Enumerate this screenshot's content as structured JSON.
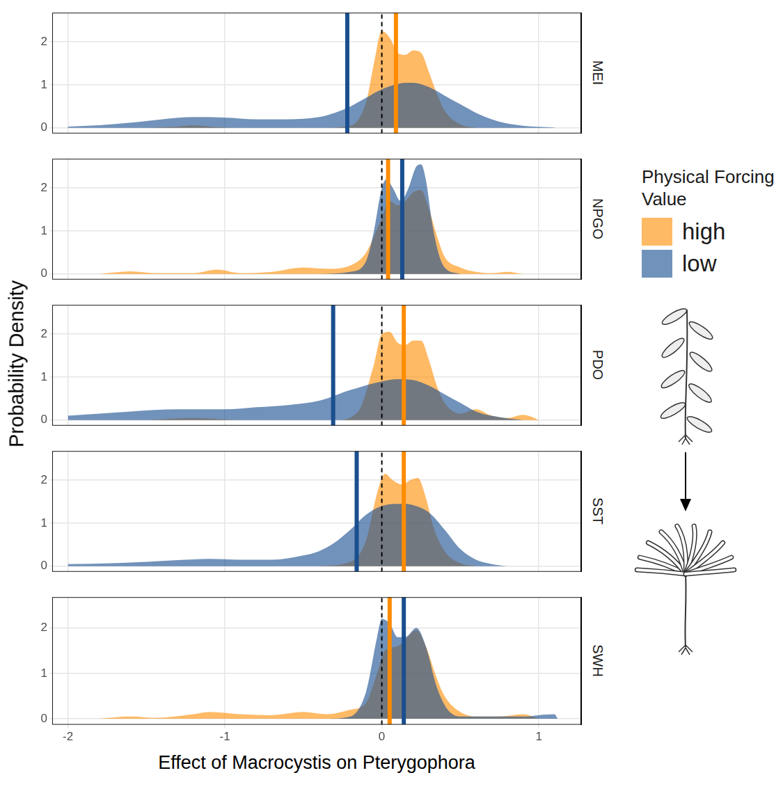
{
  "figure": {
    "x_label": "Effect of Macrocystis on Pterygophora",
    "y_label": "Probability Density",
    "legend_title": "Physical Forcing Value",
    "legend": "right"
  },
  "chart_data": [
    {
      "type": "area",
      "title": "MEI",
      "tick_labels": "y",
      "grid": true,
      "xlim": [
        -2.1,
        1.27
      ],
      "xticks": [
        -2,
        -1,
        0,
        1
      ],
      "ylim": [
        -0.13,
        2.68
      ],
      "yticks": [
        0,
        1,
        2
      ],
      "reference_line": 0,
      "series": [
        {
          "name": "high",
          "color": "#ff8c00",
          "median": 0.09,
          "x": [
            -1.5,
            -1.3,
            -1.2,
            -1.1,
            -0.9,
            -0.4,
            -0.2,
            -0.1,
            -0.05,
            0,
            0.05,
            0.1,
            0.15,
            0.2,
            0.25,
            0.3,
            0.35,
            0.4,
            0.5,
            0.6
          ],
          "values": [
            0,
            0.03,
            0.06,
            0.03,
            0,
            0,
            0.05,
            0.6,
            1.5,
            2.25,
            2.1,
            1.75,
            1.7,
            1.8,
            1.75,
            1.3,
            0.8,
            0.4,
            0.08,
            0
          ]
        },
        {
          "name": "low",
          "color": "#1a4f8f",
          "median": -0.22,
          "x": [
            -2,
            -1.8,
            -1.6,
            -1.4,
            -1.2,
            -1.0,
            -0.8,
            -0.6,
            -0.4,
            -0.3,
            -0.2,
            -0.1,
            0,
            0.1,
            0.15,
            0.2,
            0.3,
            0.4,
            0.5,
            0.6,
            0.7,
            0.8,
            0.9,
            1.1
          ],
          "values": [
            0.03,
            0.06,
            0.12,
            0.2,
            0.25,
            0.24,
            0.2,
            0.2,
            0.25,
            0.35,
            0.5,
            0.7,
            0.9,
            1.02,
            1.05,
            1.05,
            0.95,
            0.75,
            0.55,
            0.35,
            0.2,
            0.1,
            0.05,
            0.01
          ]
        }
      ]
    },
    {
      "type": "area",
      "title": "NPGO",
      "tick_labels": "y",
      "grid": true,
      "xlim": [
        -2.1,
        1.27
      ],
      "xticks": [
        -2,
        -1,
        0,
        1
      ],
      "ylim": [
        -0.13,
        2.68
      ],
      "yticks": [
        0,
        1,
        2
      ],
      "reference_line": 0,
      "series": [
        {
          "name": "high",
          "color": "#ff8c00",
          "median": 0.04,
          "x": [
            -1.8,
            -1.6,
            -1.45,
            -1.2,
            -1.05,
            -0.9,
            -0.7,
            -0.5,
            -0.35,
            -0.2,
            -0.1,
            0,
            0.05,
            0.1,
            0.15,
            0.2,
            0.25,
            0.3,
            0.35,
            0.4,
            0.5,
            0.6,
            0.7,
            0.8,
            0.9
          ],
          "values": [
            0,
            0.06,
            0.02,
            0.02,
            0.1,
            0.02,
            0.05,
            0.15,
            0.12,
            0.2,
            0.5,
            1.3,
            1.7,
            1.6,
            1.7,
            1.9,
            1.95,
            1.5,
            0.9,
            0.4,
            0.15,
            0.05,
            0.02,
            0.05,
            0
          ]
        },
        {
          "name": "low",
          "color": "#1a4f8f",
          "median": 0.13,
          "x": [
            -0.4,
            -0.2,
            -0.1,
            -0.05,
            0,
            0.03,
            0.07,
            0.12,
            0.17,
            0.22,
            0.25,
            0.28,
            0.32,
            0.36,
            0.4,
            0.5
          ],
          "values": [
            0,
            0.05,
            0.3,
            1.0,
            2.0,
            2.2,
            2.0,
            1.7,
            2.0,
            2.5,
            2.55,
            2.2,
            1.2,
            0.5,
            0.15,
            0
          ]
        }
      ]
    },
    {
      "type": "area",
      "title": "PDO",
      "tick_labels": "y",
      "grid": true,
      "xlim": [
        -2.1,
        1.27
      ],
      "xticks": [
        -2,
        -1,
        0,
        1
      ],
      "ylim": [
        -0.13,
        2.68
      ],
      "yticks": [
        0,
        1,
        2
      ],
      "reference_line": 0,
      "series": [
        {
          "name": "high",
          "color": "#ff8c00",
          "median": 0.14,
          "x": [
            -1.5,
            -1.2,
            -0.9,
            -0.3,
            -0.15,
            -0.05,
            0,
            0.05,
            0.1,
            0.15,
            0.2,
            0.25,
            0.3,
            0.35,
            0.4,
            0.5,
            0.6,
            0.7,
            0.8,
            0.9,
            0.95,
            1.0
          ],
          "values": [
            0,
            0.05,
            0,
            0,
            0.2,
            1.3,
            2.0,
            2.05,
            1.8,
            1.75,
            1.85,
            1.85,
            1.4,
            0.8,
            0.4,
            0.15,
            0.25,
            0.1,
            0.05,
            0.12,
            0.08,
            0
          ]
        },
        {
          "name": "low",
          "color": "#1a4f8f",
          "median": -0.31,
          "x": [
            -2,
            -1.8,
            -1.6,
            -1.3,
            -1.0,
            -0.8,
            -0.6,
            -0.4,
            -0.2,
            0,
            0.1,
            0.2,
            0.3,
            0.4,
            0.5,
            0.6,
            0.7,
            0.8,
            0.9
          ],
          "values": [
            0.1,
            0.15,
            0.2,
            0.25,
            0.25,
            0.3,
            0.35,
            0.45,
            0.7,
            0.9,
            0.95,
            0.93,
            0.8,
            0.6,
            0.4,
            0.2,
            0.1,
            0.04,
            0
          ]
        }
      ]
    },
    {
      "type": "area",
      "title": "SST",
      "tick_labels": "y",
      "grid": true,
      "xlim": [
        -2.1,
        1.27
      ],
      "xticks": [
        -2,
        -1,
        0,
        1
      ],
      "ylim": [
        -0.13,
        2.68
      ],
      "yticks": [
        0,
        1,
        2
      ],
      "reference_line": 0,
      "series": [
        {
          "name": "high",
          "color": "#ff8c00",
          "median": 0.14,
          "x": [
            -0.4,
            -0.2,
            -0.1,
            -0.03,
            0.02,
            0.07,
            0.13,
            0.18,
            0.23,
            0.28,
            0.33,
            0.4,
            0.5,
            0.6
          ],
          "values": [
            0,
            0.1,
            0.6,
            1.7,
            2.15,
            2.0,
            1.9,
            2.0,
            2.05,
            1.6,
            0.9,
            0.35,
            0.07,
            0
          ]
        },
        {
          "name": "low",
          "color": "#1a4f8f",
          "median": -0.16,
          "x": [
            -2,
            -1.8,
            -1.5,
            -1.3,
            -1.1,
            -0.9,
            -0.7,
            -0.5,
            -0.4,
            -0.3,
            -0.2,
            -0.1,
            0,
            0.1,
            0.15,
            0.2,
            0.3,
            0.4,
            0.5,
            0.6,
            0.7,
            0.8
          ],
          "values": [
            0.05,
            0.06,
            0.1,
            0.14,
            0.17,
            0.15,
            0.15,
            0.25,
            0.35,
            0.55,
            0.85,
            1.2,
            1.4,
            1.45,
            1.45,
            1.42,
            1.25,
            0.85,
            0.4,
            0.15,
            0.05,
            0
          ]
        }
      ]
    },
    {
      "type": "area",
      "title": "SWH",
      "grid": true,
      "xlim": [
        -2.1,
        1.27
      ],
      "xticks": [
        -2,
        -1,
        0,
        1
      ],
      "ylim": [
        -0.13,
        2.68
      ],
      "yticks": [
        0,
        1,
        2
      ],
      "reference_line": 0,
      "series": [
        {
          "name": "high",
          "color": "#ff8c00",
          "median": 0.05,
          "x": [
            -1.8,
            -1.6,
            -1.45,
            -1.2,
            -1.1,
            -0.9,
            -0.7,
            -0.5,
            -0.35,
            -0.2,
            -0.1,
            -0.03,
            0.02,
            0.1,
            0.15,
            0.22,
            0.28,
            0.35,
            0.4,
            0.5,
            0.6,
            0.75,
            0.9,
            1.0
          ],
          "values": [
            0,
            0.05,
            0.02,
            0.1,
            0.15,
            0.1,
            0.08,
            0.15,
            0.1,
            0.2,
            0.35,
            1.0,
            1.5,
            1.6,
            1.75,
            1.95,
            1.6,
            0.9,
            0.5,
            0.15,
            0.05,
            0.05,
            0.1,
            0
          ]
        },
        {
          "name": "low",
          "color": "#1a4f8f",
          "median": 0.14,
          "x": [
            -0.35,
            -0.2,
            -0.1,
            -0.03,
            0,
            0.05,
            0.1,
            0.15,
            0.22,
            0.28,
            0.35,
            0.42,
            0.5,
            0.7,
            0.9,
            1.0,
            1.1,
            1.12
          ],
          "values": [
            0,
            0.05,
            0.6,
            1.8,
            2.2,
            2.1,
            1.8,
            1.8,
            2.0,
            1.6,
            0.7,
            0.2,
            0.05,
            0.05,
            0.05,
            0.08,
            0.1,
            0
          ]
        }
      ]
    }
  ]
}
